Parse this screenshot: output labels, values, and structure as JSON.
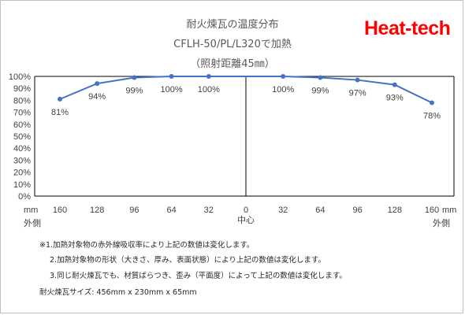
{
  "header": {
    "title_line1": "耐火煉瓦の温度分布",
    "title_line2": "CFLH-50/PL/L320で加熱",
    "title_line3": "（照射距離45㎜）",
    "brand": "Heat-tech",
    "brand_color": "#ff0000"
  },
  "chart_data": {
    "type": "line",
    "x": [
      -160,
      -128,
      -96,
      -64,
      -32,
      32,
      64,
      96,
      128,
      160
    ],
    "x_tick_labels": [
      "160",
      "128",
      "96",
      "64",
      "32",
      "0",
      "32",
      "64",
      "96",
      "128",
      "160"
    ],
    "y_tick_labels": [
      "0%",
      "10%",
      "20%",
      "30%",
      "40%",
      "50%",
      "60%",
      "70%",
      "80%",
      "90%",
      "100%"
    ],
    "ylim": [
      0,
      100
    ],
    "xlim": [
      -160,
      160
    ],
    "series": [
      {
        "values": [
          81,
          94,
          99,
          100,
          100,
          100,
          99,
          97,
          93,
          78
        ],
        "labels": [
          "81%",
          "94%",
          "99%",
          "100%",
          "100%",
          "100%",
          "99%",
          "97%",
          "93%",
          "78%"
        ],
        "color": "#4472c4"
      }
    ],
    "axis_annotations": {
      "mm_left": "mm",
      "outside_left": "外側",
      "mm_right": "mm",
      "outside_right": "外側",
      "center": "中心"
    },
    "grid": "vertical-center-line"
  },
  "notes": {
    "line1": "※1.加熱対象物の赤外線吸収率により上記の数値は変化します。",
    "line2": "2.加熱対象物の形状（大きさ、厚み、表面状態）により上記の数値は変化します。",
    "line3": "3.同じ耐火煉瓦でも、材質ばらつき、歪み（平面度）によって上記の数値は変化します。",
    "size": "耐火煉瓦サイズ: 456mm x 230mm x 65mm"
  }
}
